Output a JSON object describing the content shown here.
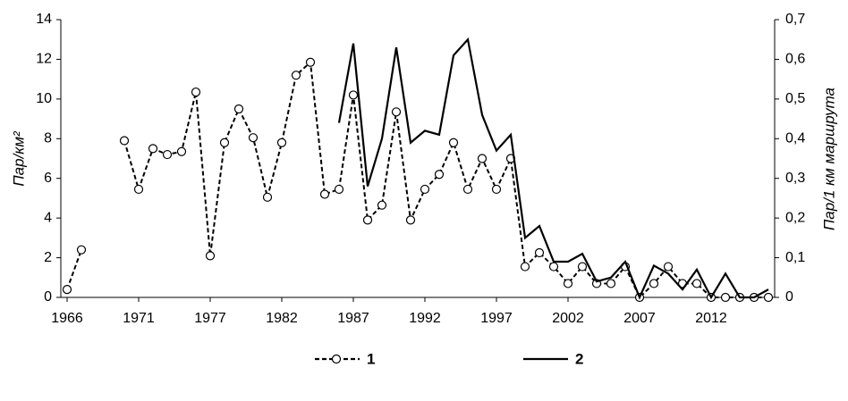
{
  "chart_data": {
    "type": "line",
    "y_label": "Пар/км²",
    "y2_label": "Пар/1 км маршрута",
    "categories": [
      "1966",
      null,
      null,
      null,
      null,
      "1971",
      null,
      null,
      null,
      null,
      "1977",
      null,
      null,
      null,
      null,
      "1982",
      null,
      null,
      null,
      null,
      "1987",
      null,
      null,
      null,
      null,
      "1992",
      null,
      null,
      null,
      null,
      "1997",
      null,
      null,
      null,
      null,
      "2002",
      null,
      null,
      null,
      null,
      "2007",
      null,
      null,
      null,
      null,
      "2012",
      null,
      null,
      null,
      null
    ],
    "ylim": [
      0,
      14
    ],
    "yticks": [
      0,
      2,
      4,
      6,
      8,
      10,
      12,
      14
    ],
    "y2lim": [
      0,
      0.7
    ],
    "y2ticks": [
      0,
      {
        "value": 0.1,
        "label": "0,1"
      },
      {
        "value": 0.2,
        "label": "0,2"
      },
      {
        "value": 0.3,
        "label": "0,3"
      },
      {
        "value": 0.4,
        "label": "0,4"
      },
      {
        "value": 0.5,
        "label": "0,5"
      },
      {
        "value": 0.6,
        "label": "0,6"
      },
      {
        "value": 0.7,
        "label": "0,7"
      }
    ],
    "legend": "bottom",
    "series": [
      {
        "name": "1",
        "color": "#000000",
        "dashed": true,
        "marker": "circle",
        "values": [
          0.4,
          2.4,
          null,
          null,
          7.9,
          5.45,
          7.5,
          7.2,
          7.35,
          10.35,
          2.1,
          7.8,
          9.5,
          8.05,
          5.05,
          7.8,
          11.2,
          11.85,
          5.2,
          5.45,
          10.2,
          3.9,
          4.65,
          9.35,
          3.9,
          5.45,
          6.2,
          7.8,
          5.45,
          7.0,
          5.45,
          7.0,
          1.55,
          2.25,
          1.55,
          0.7,
          1.55,
          0.7,
          0.7,
          1.55,
          0,
          0.7,
          1.55,
          0.7,
          0.7,
          0,
          0,
          0,
          0,
          0
        ]
      },
      {
        "name": "2",
        "color": "#000000",
        "dashed": false,
        "axis": "y2",
        "values": [
          null,
          null,
          null,
          null,
          null,
          null,
          null,
          null,
          null,
          null,
          null,
          null,
          null,
          null,
          null,
          null,
          null,
          null,
          null,
          0.44,
          0.64,
          0.28,
          0.4,
          0.63,
          0.39,
          0.42,
          0.41,
          0.61,
          0.65,
          0.46,
          0.37,
          0.41,
          0.15,
          0.18,
          0.09,
          0.09,
          0.11,
          0.04,
          0.05,
          0.09,
          0,
          0.08,
          0.06,
          0.02,
          0.07,
          0,
          0.06,
          0,
          0,
          0.02
        ]
      }
    ]
  }
}
